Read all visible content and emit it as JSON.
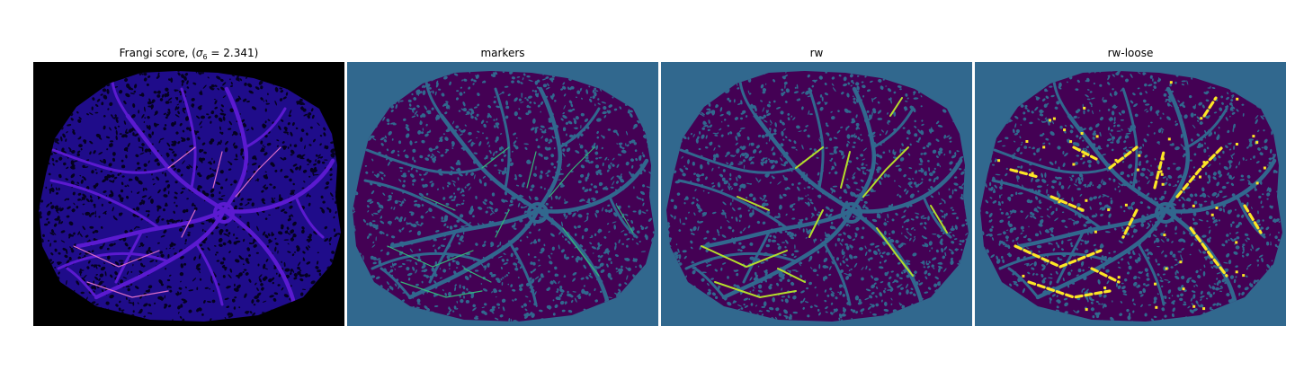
{
  "panels": [
    {
      "id": "frangi",
      "title_prefix": "Frangi score, (",
      "title_sigma": "σ",
      "title_sub": "6",
      "title_suffix": " = 2.341)",
      "background": "#000000",
      "disk": "#1f0c8a",
      "texture": "#05021f",
      "vessel": "#5b1ad0",
      "bright": "#e070c8"
    },
    {
      "id": "markers",
      "title": "markers",
      "background": "#31688e",
      "disk": "#440154",
      "texture": "#31688e",
      "vessel": "#31688e",
      "bright": "#35b779"
    },
    {
      "id": "rw",
      "title": "rw",
      "background": "#31688e",
      "disk": "#440154",
      "texture": "#31688e",
      "vessel": "#31688e",
      "bright": "#b5de2b"
    },
    {
      "id": "rw-loose",
      "title": "rw-loose",
      "background": "#31688e",
      "disk": "#440154",
      "texture": "#31688e",
      "vessel": "#31688e",
      "bright": "#fde725"
    }
  ]
}
